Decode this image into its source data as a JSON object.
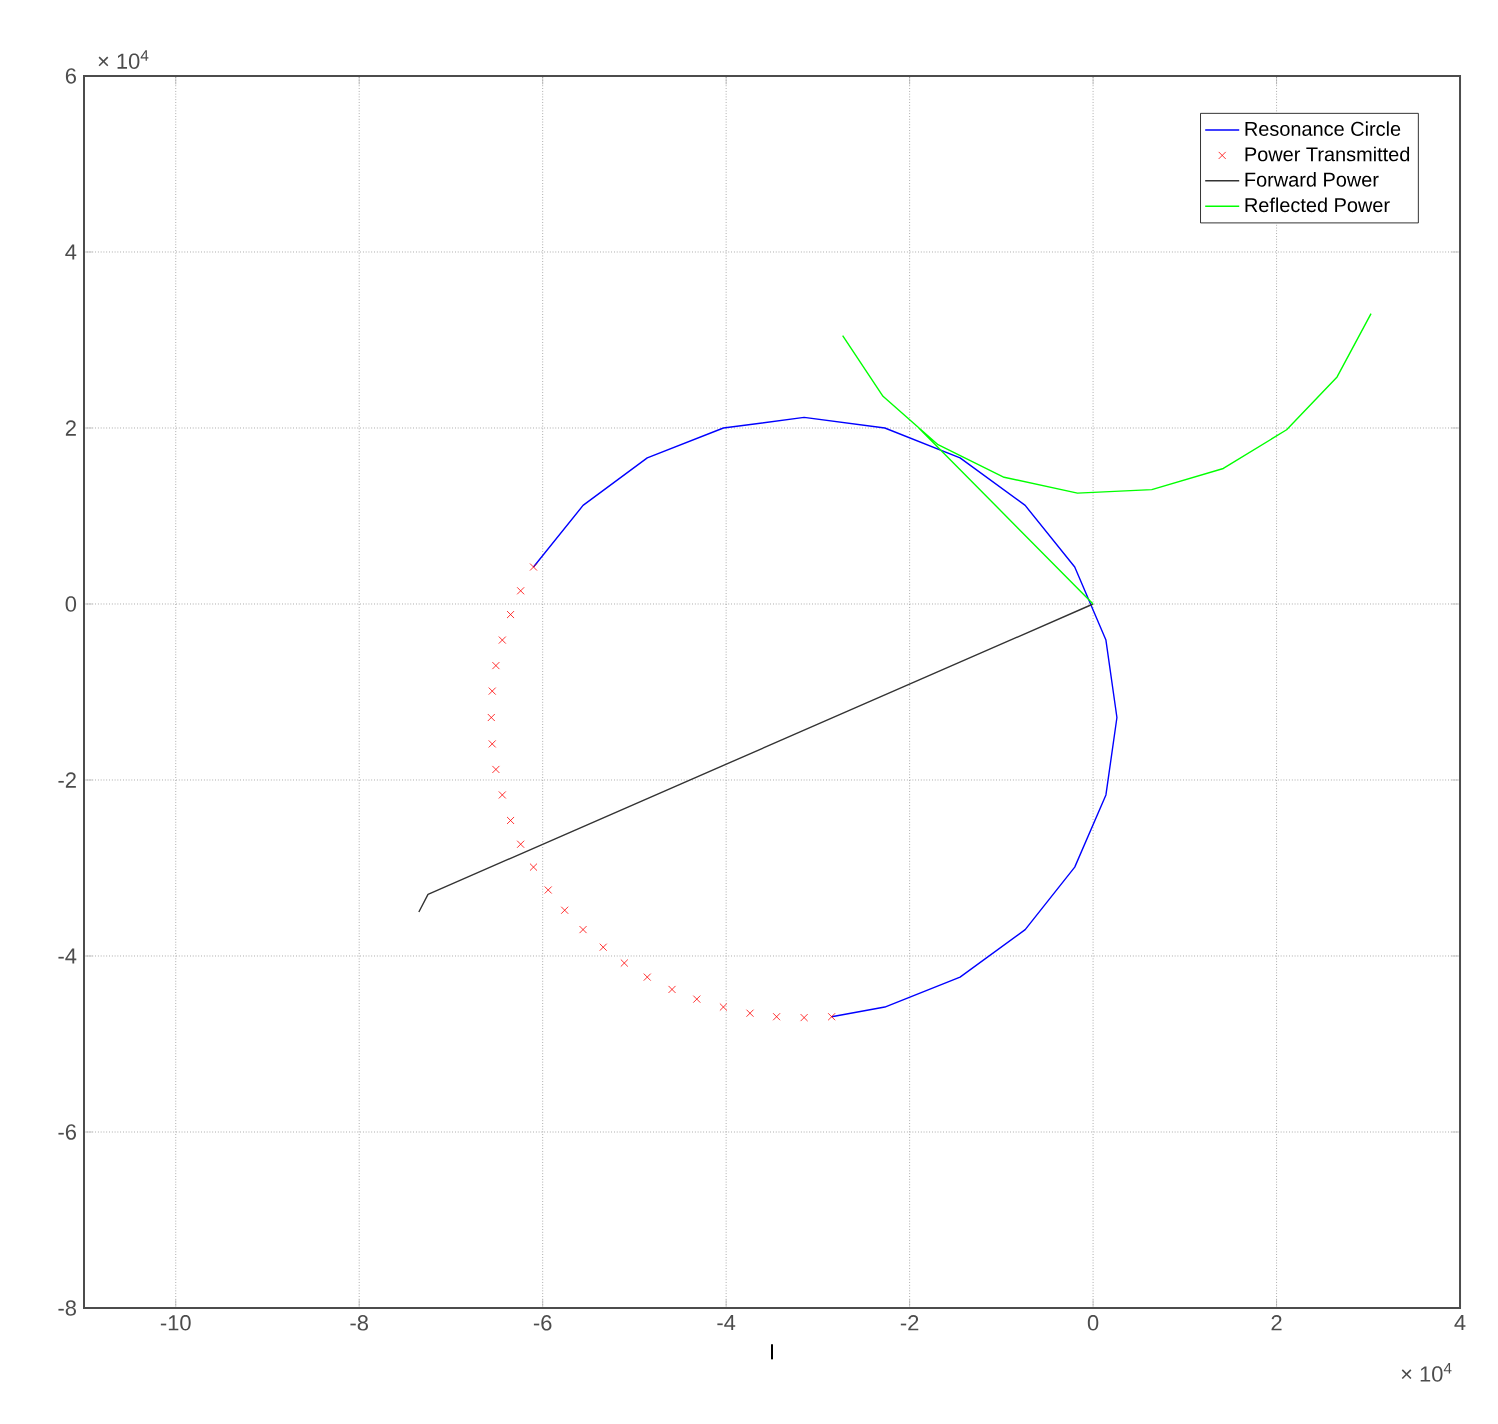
{
  "chart_data": {
    "type": "line",
    "xlabel": "I",
    "annotations": [
      "× 10$^{4}$",
      "× 10$^{4}$"
    ],
    "xlim": [
      -11,
      4
    ],
    "ylim": [
      -8,
      6
    ],
    "xticks": [
      -10,
      -8,
      -6,
      -4,
      -2,
      0,
      2,
      4
    ],
    "yticks": [
      -8,
      -6,
      -4,
      -2,
      0,
      2,
      4,
      6
    ],
    "grid": true,
    "legend": "top right",
    "series": [
      {
        "name": "Resonance Circle",
        "color": "#0000ff",
        "x": [
          -6.1,
          -5.56,
          -4.86,
          -4.03,
          -3.15,
          -2.27,
          -1.45,
          -0.74,
          -0.2,
          0.14,
          0.26,
          0.14,
          -0.2,
          -0.74,
          -1.45,
          -2.27,
          -2.85
        ],
        "values": [
          0.42,
          1.12,
          1.66,
          2.0,
          2.12,
          2.0,
          1.66,
          1.12,
          0.42,
          -0.41,
          -1.29,
          -2.17,
          -2.99,
          -3.7,
          -4.24,
          -4.58,
          -4.69
        ]
      },
      {
        "name": "Power Transmitted",
        "type": "scatter",
        "marker": "cross",
        "color": "#ff0000",
        "x": [
          -6.1,
          -6.24,
          -6.35,
          -6.44,
          -6.51,
          -6.55,
          -6.56,
          -6.55,
          -6.51,
          -6.44,
          -6.35,
          -6.24,
          -6.1,
          -5.94,
          -5.76,
          -5.56,
          -5.34,
          -5.11,
          -4.86,
          -4.59,
          -4.32,
          -4.03,
          -3.74,
          -3.45,
          -3.15,
          -2.85
        ],
        "values": [
          0.42,
          0.15,
          -0.12,
          -0.41,
          -0.7,
          -0.99,
          -1.29,
          -1.59,
          -1.88,
          -2.17,
          -2.46,
          -2.73,
          -2.99,
          -3.25,
          -3.48,
          -3.7,
          -3.9,
          -4.08,
          -4.24,
          -4.38,
          -4.49,
          -4.58,
          -4.65,
          -4.69,
          -4.7,
          -4.69
        ]
      },
      {
        "name": "Forward Power",
        "color": "#333333",
        "x": [
          0,
          -7.25,
          -7.35
        ],
        "values": [
          0,
          -3.3,
          -3.5
        ]
      },
      {
        "name": "Reflected Power",
        "color": "#00ff00",
        "x": [
          0,
          -1.9,
          null,
          -2.73,
          -2.29,
          -1.69,
          -0.97,
          -0.17,
          0.64,
          1.42,
          2.11,
          2.66,
          3.03
        ],
        "values": [
          0,
          2.0,
          null,
          3.05,
          2.36,
          1.81,
          1.44,
          1.26,
          1.3,
          1.54,
          1.98,
          2.58,
          3.3
        ]
      }
    ]
  }
}
